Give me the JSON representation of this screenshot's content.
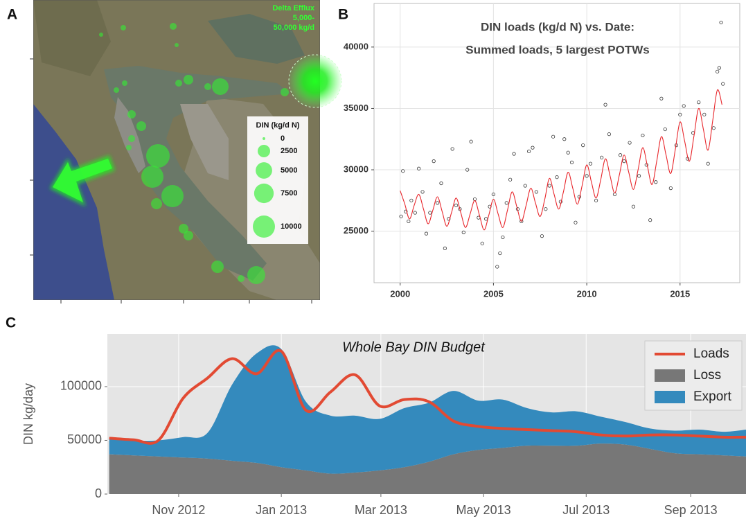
{
  "chart_data": [
    {
      "type": "bubble-map",
      "panel_label": "A",
      "annotation": [
        "Delta Efflux",
        "5,000-",
        "50,000 kg/d"
      ],
      "legend_title": "DIN (kg/d N)",
      "legend_values": [
        0,
        2500,
        5000,
        7500,
        10000
      ],
      "color": "#33ee33",
      "values": [
        50,
        200,
        460,
        50,
        1280,
        460,
        460,
        5100,
        200,
        200,
        820,
        1280,
        460,
        200,
        11500,
        10000,
        10000,
        1840,
        1280,
        1280,
        2500,
        460,
        6170,
        820
      ]
    },
    {
      "type": "scatter",
      "panel_label": "B",
      "title": [
        "DIN loads (kg/d N) vs. Date:",
        "Summed loads, 5 largest POTWs"
      ],
      "series": [
        {
          "type": "scatter",
          "color": "#333333",
          "x": [
            2000.05,
            2000.15,
            2000.3,
            2000.45,
            2000.6,
            2000.8,
            2001.0,
            2001.2,
            2001.4,
            2001.6,
            2001.8,
            2002.0,
            2002.2,
            2002.4,
            2002.6,
            2002.8,
            2003.0,
            2003.2,
            2003.4,
            2003.6,
            2003.8,
            2004.0,
            2004.2,
            2004.4,
            2004.6,
            2004.8,
            2005.0,
            2005.2,
            2005.35,
            2005.5,
            2005.7,
            2005.9,
            2006.1,
            2006.3,
            2006.5,
            2006.7,
            2006.9,
            2007.1,
            2007.3,
            2007.6,
            2007.8,
            2008.0,
            2008.2,
            2008.4,
            2008.6,
            2008.8,
            2009.0,
            2009.2,
            2009.4,
            2009.6,
            2009.8,
            2010.0,
            2010.2,
            2010.5,
            2010.8,
            2011.0,
            2011.2,
            2011.5,
            2011.8,
            2012.0,
            2012.3,
            2012.5,
            2012.8,
            2013.0,
            2013.2,
            2013.4,
            2013.7,
            2014.0,
            2014.2,
            2014.5,
            2014.8,
            2015.0,
            2015.2,
            2015.4,
            2015.7,
            2016.0,
            2016.3,
            2016.5,
            2016.8,
            2017.0,
            2017.1,
            2017.2,
            2017.3
          ],
          "values": [
            26200,
            29900,
            26600,
            25800,
            27500,
            26500,
            30100,
            28200,
            24800,
            26500,
            30700,
            27300,
            28900,
            23600,
            26000,
            31700,
            27100,
            26800,
            24900,
            30000,
            32300,
            27600,
            26100,
            24000,
            26000,
            27000,
            28000,
            22100,
            23200,
            24500,
            27300,
            29200,
            31300,
            26800,
            25800,
            28700,
            31500,
            31800,
            28200,
            24600,
            26800,
            28700,
            32700,
            29400,
            27400,
            32500,
            31400,
            30600,
            25700,
            27800,
            32000,
            29500,
            30500,
            27500,
            31000,
            35300,
            32900,
            28000,
            31200,
            30700,
            32200,
            27000,
            29500,
            32800,
            30400,
            25900,
            29000,
            35800,
            33300,
            28500,
            32000,
            34500,
            35200,
            30900,
            33000,
            35500,
            34500,
            30500,
            33400,
            38000,
            38300,
            42000,
            37000
          ]
        },
        {
          "type": "line",
          "color": "#e8262b",
          "x": [
            2000,
            2000.25,
            2000.5,
            2000.75,
            2001,
            2001.25,
            2001.5,
            2001.75,
            2002,
            2002.25,
            2002.5,
            2002.75,
            2003,
            2003.25,
            2003.5,
            2003.75,
            2004,
            2004.25,
            2004.5,
            2004.75,
            2005,
            2005.25,
            2005.5,
            2005.75,
            2006,
            2006.25,
            2006.5,
            2006.75,
            2007,
            2007.25,
            2007.5,
            2007.75,
            2008,
            2008.25,
            2008.5,
            2008.75,
            2009,
            2009.25,
            2009.5,
            2009.75,
            2010,
            2010.25,
            2010.5,
            2010.75,
            2011,
            2011.25,
            2011.5,
            2011.75,
            2012,
            2012.25,
            2012.5,
            2012.75,
            2013,
            2013.25,
            2013.5,
            2013.75,
            2014,
            2014.25,
            2014.5,
            2014.75,
            2015,
            2015.25,
            2015.5,
            2015.75,
            2016,
            2016.25,
            2016.5,
            2016.75,
            2017,
            2017.25
          ],
          "values": [
            28300,
            27200,
            26000,
            27100,
            28000,
            26800,
            25600,
            26700,
            27800,
            26600,
            25400,
            26500,
            27700,
            26500,
            25300,
            26400,
            27500,
            26300,
            25100,
            26300,
            27600,
            26400,
            25300,
            26700,
            28200,
            27000,
            25800,
            27100,
            28500,
            27300,
            26200,
            27600,
            29300,
            28000,
            26800,
            28200,
            29800,
            28500,
            27200,
            28700,
            30400,
            29000,
            27700,
            29200,
            30900,
            29500,
            28100,
            29600,
            31200,
            29800,
            28400,
            30000,
            31800,
            30300,
            28800,
            30700,
            32700,
            31200,
            29700,
            31700,
            33900,
            32300,
            30700,
            32800,
            35000,
            33300,
            31600,
            34000,
            36500,
            35300
          ]
        }
      ],
      "xlim": [
        1998.6,
        2018.2
      ],
      "xticks": [
        2000,
        2005,
        2010,
        2015
      ],
      "ylim": [
        20800,
        43550
      ],
      "yticks": [
        25000,
        30000,
        35000,
        40000
      ],
      "grid": true
    },
    {
      "type": "area",
      "panel_label": "C",
      "title": "Whole Bay DIN Budget",
      "y_label": "DIN kg/day",
      "x": [
        2012.72,
        2012.76,
        2012.8,
        2012.84,
        2012.88,
        2012.92,
        2012.96,
        2013.0,
        2013.04,
        2013.08,
        2013.12,
        2013.16,
        2013.2,
        2013.24,
        2013.28,
        2013.32,
        2013.36,
        2013.4,
        2013.44,
        2013.48,
        2013.52,
        2013.56,
        2013.6,
        2013.64,
        2013.68,
        2013.72,
        2013.756
      ],
      "series": [
        {
          "name": "Loads",
          "type": "line",
          "color": "#e24a33",
          "values": [
            52000,
            50500,
            50000,
            89000,
            108000,
            126000,
            112000,
            133000,
            78000,
            95000,
            111000,
            82000,
            88000,
            86000,
            68000,
            63000,
            61000,
            60000,
            59000,
            58000,
            55000,
            54000,
            55000,
            55000,
            54000,
            53000,
            53000
          ]
        },
        {
          "name": "Loss",
          "type": "area",
          "color": "#777777",
          "values": [
            37000,
            36000,
            35000,
            34000,
            33000,
            31000,
            29000,
            25000,
            22000,
            19000,
            20000,
            22000,
            25000,
            30000,
            37000,
            41000,
            43000,
            45000,
            45000,
            45000,
            47000,
            46000,
            42000,
            38000,
            37000,
            36000,
            35000
          ]
        },
        {
          "name": "Export",
          "type": "area",
          "color": "#348abd",
          "values": [
            15000,
            14000,
            15000,
            19000,
            24000,
            71000,
            102000,
            110000,
            64000,
            54000,
            53000,
            48000,
            55000,
            55000,
            59000,
            46000,
            45000,
            35000,
            31000,
            32000,
            25000,
            21000,
            19000,
            21000,
            23000,
            22000,
            25000
          ]
        }
      ],
      "stacked": true,
      "xlim": [
        2012.717,
        2013.756
      ],
      "xticks": [
        {
          "value": 2012.833,
          "label": "Nov 2012"
        },
        {
          "value": 2013.0,
          "label": "Jan 2013"
        },
        {
          "value": 2013.162,
          "label": "Mar 2013"
        },
        {
          "value": 2013.329,
          "label": "May 2013"
        },
        {
          "value": 2013.496,
          "label": "Jul 2013"
        },
        {
          "value": 2013.666,
          "label": "Sep 2013"
        }
      ],
      "ylim": [
        0,
        149000
      ],
      "yticks": [
        0,
        50000,
        100000
      ],
      "grid": true,
      "legend": "upper right"
    }
  ]
}
